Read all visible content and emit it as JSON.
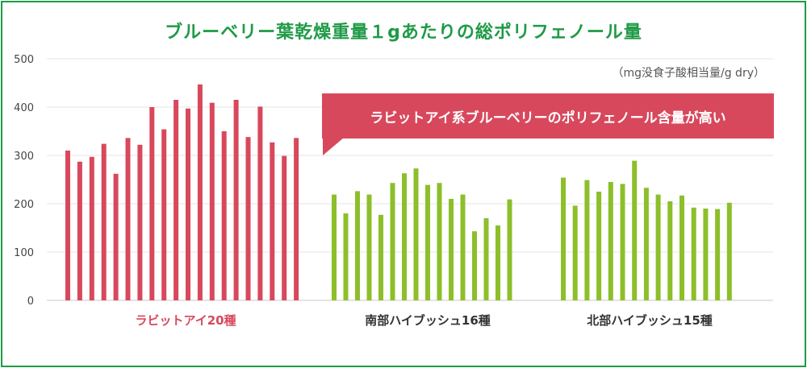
{
  "title": "ブルーベリー葉乾燥重量１gあたりの総ポリフェノール量",
  "unit_note": "（mg没食子酸相当量/g dry）",
  "callout": "ラビットアイ系ブルーベリーのポリフェノール含量が高い",
  "colors": {
    "frame": "#1e9a46",
    "title": "#1f9a47",
    "rabbiteye": "#d8485c",
    "highbush": "#8cbf2a",
    "callout": "#d8485c",
    "grid": "#e4e4e4"
  },
  "chart_data": {
    "type": "bar",
    "title": "ブルーベリー葉乾燥重量１gあたりの総ポリフェノール量",
    "ylabel": "（mg没食子酸相当量/g dry）",
    "ylim": [
      0,
      500
    ],
    "yticks": [
      0,
      100,
      200,
      300,
      400,
      500
    ],
    "grid": true,
    "series": [
      {
        "name": "ラビットアイ20種",
        "color": "#d8485c",
        "values": [
          310,
          287,
          297,
          324,
          262,
          336,
          322,
          400,
          354,
          415,
          397,
          447,
          409,
          350,
          415,
          338,
          401,
          327,
          299,
          336
        ]
      },
      {
        "name": "南部ハイブッシュ16種",
        "color": "#8cbf2a",
        "values": [
          219,
          180,
          226,
          219,
          177,
          243,
          263,
          273,
          239,
          243,
          210,
          219,
          143,
          170,
          155,
          209
        ]
      },
      {
        "name": "北部ハイブッシュ15種",
        "color": "#8cbf2a",
        "values": [
          254,
          196,
          249,
          225,
          245,
          241,
          289,
          233,
          219,
          205,
          217,
          192,
          190,
          189,
          202
        ]
      }
    ]
  }
}
